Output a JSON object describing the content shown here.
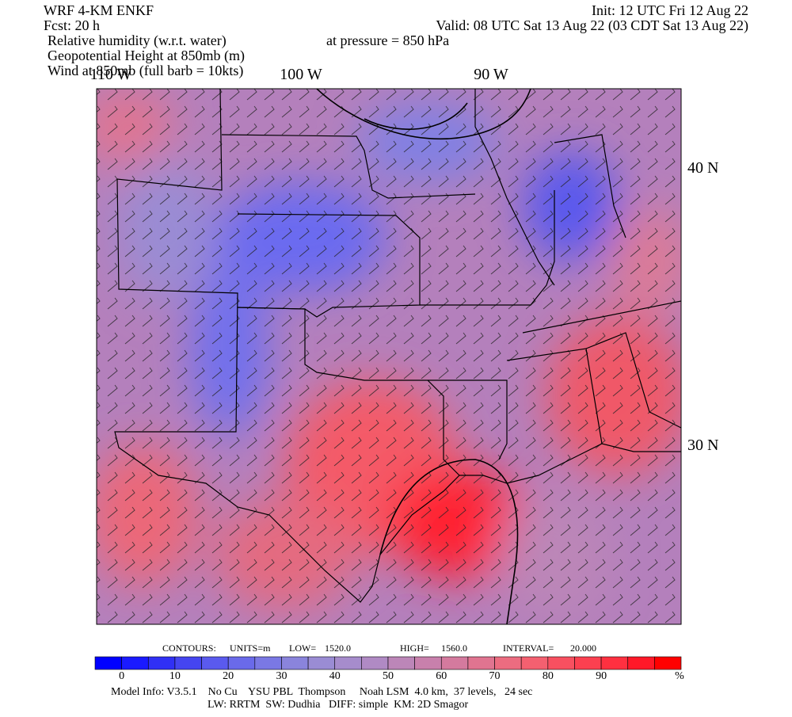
{
  "header": {
    "model": "WRF 4-KM ENKF",
    "forecast": "Fcst:   20 h",
    "fields": [
      "Relative humidity (w.r.t. water)",
      "Geopotential Height at 850mb (m)",
      "Wind at 850mb (full barb = 10kts)"
    ],
    "init": "Init: 12 UTC Fri 12 Aug 22",
    "valid": "Valid: 08 UTC Sat 13 Aug 22 (03 CDT Sat 13 Aug 22)",
    "pressure": "at pressure =  850 hPa"
  },
  "map": {
    "lon_labels": [
      "110 W",
      "100 W",
      "90 W"
    ],
    "lat_labels": [
      "40 N",
      "30 N"
    ]
  },
  "contours": {
    "label": "CONTOURS:",
    "units": "UNITS=m",
    "low_label": "LOW=",
    "low": "1520.0",
    "high_label": "HIGH=",
    "high": "1560.0",
    "interval_label": "INTERVAL=",
    "interval": "20.000"
  },
  "colorbar": {
    "labels": [
      0,
      10,
      20,
      30,
      40,
      50,
      60,
      70,
      80,
      90
    ],
    "unit": "%",
    "colors": [
      "#0000ff",
      "#1a1aff",
      "#3030f5",
      "#4545f0",
      "#5a5aee",
      "#6a6aea",
      "#7a78e4",
      "#8a84dc",
      "#9a8cd4",
      "#a68ccc",
      "#b08ac4",
      "#bc86b8",
      "#c880ac",
      "#d47a9e",
      "#e07490",
      "#ec6c80",
      "#f46070",
      "#f85060",
      "#fc4050",
      "#ff3040",
      "#ff1828",
      "#ff0000"
    ]
  },
  "footer": {
    "model_info": "Model Info: V3.5.1    No Cu    YSU PBL  Thompson     Noah LSM  4.0 km,  37 levels,   24 sec",
    "physics": "LW: RRTM  SW: Dudhia   DIFF: simple  KM: 2D Smagor"
  }
}
